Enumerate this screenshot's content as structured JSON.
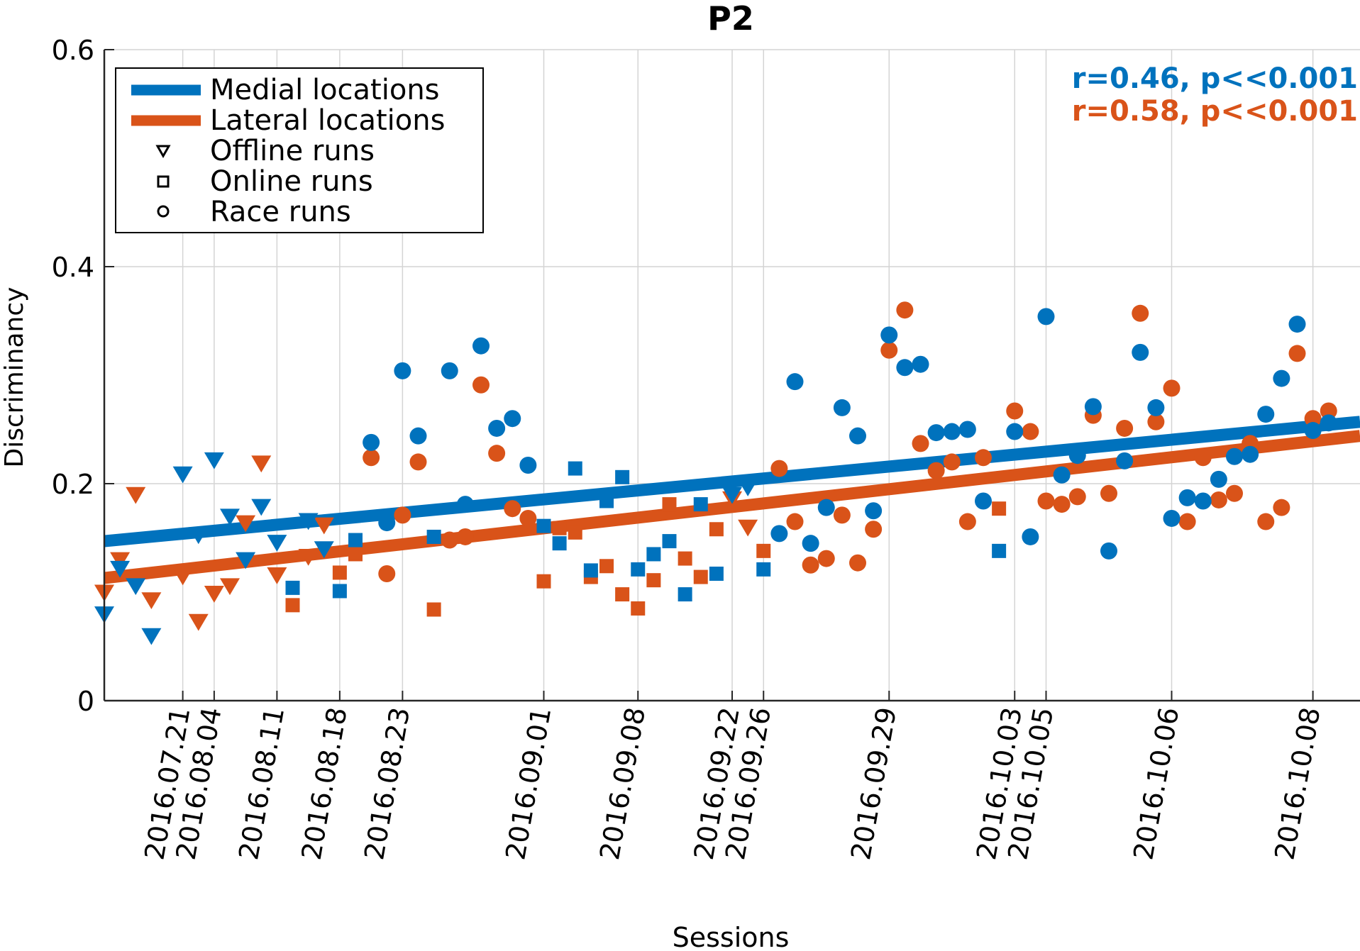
{
  "chart_data": {
    "type": "scatter",
    "title": "P2",
    "xlabel": "Sessions",
    "ylabel": "Discriminancy",
    "ylim": [
      0,
      0.6
    ],
    "yticks": [
      "0",
      "0.2",
      "0.4",
      "0.6"
    ],
    "xlim": [
      0,
      80
    ],
    "session_ticks": [
      {
        "label": "2016.07.21",
        "x": 5
      },
      {
        "label": "2016.08.04",
        "x": 7
      },
      {
        "label": "2016.08.11",
        "x": 11
      },
      {
        "label": "2016.08.18",
        "x": 15
      },
      {
        "label": "2016.08.23",
        "x": 19
      },
      {
        "label": "2016.09.01",
        "x": 28
      },
      {
        "label": "2016.09.08",
        "x": 34
      },
      {
        "label": "2016.09.22",
        "x": 40
      },
      {
        "label": "2016.09.26",
        "x": 42
      },
      {
        "label": "2016.09.29",
        "x": 50
      },
      {
        "label": "2016.10.03",
        "x": 58
      },
      {
        "label": "2016.10.05",
        "x": 60
      },
      {
        "label": "2016.10.06",
        "x": 68
      },
      {
        "label": "2016.10.08",
        "x": 77
      }
    ],
    "grid": true,
    "legend_position": "top-left",
    "legend": {
      "lines": [
        "Medial locations",
        "Lateral locations"
      ],
      "markers": [
        {
          "label": "Offline runs",
          "marker": "triangle-down"
        },
        {
          "label": "Online runs",
          "marker": "square"
        },
        {
          "label": "Race runs",
          "marker": "circle"
        }
      ]
    },
    "annotations": [
      {
        "text": "r=0.46, p<<0.001",
        "series": "Medial locations"
      },
      {
        "text": "r=0.58, p<<0.001",
        "series": "Lateral locations"
      }
    ],
    "series": [
      {
        "name": "Medial locations",
        "color": "#0072BD",
        "trend": [
          [
            0,
            0.147
          ],
          [
            80,
            0.257
          ]
        ],
        "points": [
          {
            "x": 0,
            "y": 0.08,
            "m": "tri"
          },
          {
            "x": 1,
            "y": 0.122,
            "m": "tri"
          },
          {
            "x": 2,
            "y": 0.106,
            "m": "tri"
          },
          {
            "x": 3,
            "y": 0.06,
            "m": "tri"
          },
          {
            "x": 5,
            "y": 0.209,
            "m": "tri"
          },
          {
            "x": 6,
            "y": 0.153,
            "m": "tri"
          },
          {
            "x": 7,
            "y": 0.222,
            "m": "tri"
          },
          {
            "x": 8,
            "y": 0.17,
            "m": "tri"
          },
          {
            "x": 9,
            "y": 0.13,
            "m": "tri"
          },
          {
            "x": 10,
            "y": 0.179,
            "m": "tri"
          },
          {
            "x": 11,
            "y": 0.146,
            "m": "tri"
          },
          {
            "x": 12,
            "y": 0.104,
            "m": "sq"
          },
          {
            "x": 13,
            "y": 0.166,
            "m": "tri"
          },
          {
            "x": 14,
            "y": 0.14,
            "m": "tri"
          },
          {
            "x": 15,
            "y": 0.101,
            "m": "sq"
          },
          {
            "x": 16,
            "y": 0.148,
            "m": "sq"
          },
          {
            "x": 17,
            "y": 0.238,
            "m": "circ"
          },
          {
            "x": 18,
            "y": 0.164,
            "m": "circ"
          },
          {
            "x": 19,
            "y": 0.304,
            "m": "circ"
          },
          {
            "x": 20,
            "y": 0.244,
            "m": "circ"
          },
          {
            "x": 21,
            "y": 0.151,
            "m": "sq"
          },
          {
            "x": 22,
            "y": 0.304,
            "m": "circ"
          },
          {
            "x": 23,
            "y": 0.181,
            "m": "circ"
          },
          {
            "x": 24,
            "y": 0.327,
            "m": "circ"
          },
          {
            "x": 25,
            "y": 0.251,
            "m": "circ"
          },
          {
            "x": 26,
            "y": 0.26,
            "m": "circ"
          },
          {
            "x": 27,
            "y": 0.217,
            "m": "circ"
          },
          {
            "x": 28,
            "y": 0.161,
            "m": "sq"
          },
          {
            "x": 29,
            "y": 0.145,
            "m": "sq"
          },
          {
            "x": 30,
            "y": 0.214,
            "m": "sq"
          },
          {
            "x": 31,
            "y": 0.12,
            "m": "sq"
          },
          {
            "x": 32,
            "y": 0.184,
            "m": "sq"
          },
          {
            "x": 33,
            "y": 0.206,
            "m": "sq"
          },
          {
            "x": 34,
            "y": 0.121,
            "m": "sq"
          },
          {
            "x": 35,
            "y": 0.135,
            "m": "sq"
          },
          {
            "x": 36,
            "y": 0.147,
            "m": "sq"
          },
          {
            "x": 37,
            "y": 0.098,
            "m": "sq"
          },
          {
            "x": 38,
            "y": 0.181,
            "m": "sq"
          },
          {
            "x": 39,
            "y": 0.117,
            "m": "sq"
          },
          {
            "x": 40,
            "y": 0.19,
            "m": "tri"
          },
          {
            "x": 41,
            "y": 0.197,
            "m": "tri"
          },
          {
            "x": 42,
            "y": 0.121,
            "m": "sq"
          },
          {
            "x": 43,
            "y": 0.154,
            "m": "circ"
          },
          {
            "x": 44,
            "y": 0.294,
            "m": "circ"
          },
          {
            "x": 45,
            "y": 0.145,
            "m": "circ"
          },
          {
            "x": 46,
            "y": 0.178,
            "m": "circ"
          },
          {
            "x": 47,
            "y": 0.27,
            "m": "circ"
          },
          {
            "x": 48,
            "y": 0.244,
            "m": "circ"
          },
          {
            "x": 49,
            "y": 0.175,
            "m": "circ"
          },
          {
            "x": 50,
            "y": 0.337,
            "m": "circ"
          },
          {
            "x": 51,
            "y": 0.307,
            "m": "circ"
          },
          {
            "x": 52,
            "y": 0.31,
            "m": "circ"
          },
          {
            "x": 53,
            "y": 0.247,
            "m": "circ"
          },
          {
            "x": 54,
            "y": 0.248,
            "m": "circ"
          },
          {
            "x": 55,
            "y": 0.25,
            "m": "circ"
          },
          {
            "x": 56,
            "y": 0.184,
            "m": "circ"
          },
          {
            "x": 57,
            "y": 0.138,
            "m": "sq"
          },
          {
            "x": 58,
            "y": 0.248,
            "m": "circ"
          },
          {
            "x": 59,
            "y": 0.151,
            "m": "circ"
          },
          {
            "x": 60,
            "y": 0.354,
            "m": "circ"
          },
          {
            "x": 61,
            "y": 0.208,
            "m": "circ"
          },
          {
            "x": 62,
            "y": 0.226,
            "m": "circ"
          },
          {
            "x": 63,
            "y": 0.271,
            "m": "circ"
          },
          {
            "x": 64,
            "y": 0.138,
            "m": "circ"
          },
          {
            "x": 65,
            "y": 0.221,
            "m": "circ"
          },
          {
            "x": 66,
            "y": 0.321,
            "m": "circ"
          },
          {
            "x": 67,
            "y": 0.27,
            "m": "circ"
          },
          {
            "x": 68,
            "y": 0.168,
            "m": "circ"
          },
          {
            "x": 69,
            "y": 0.187,
            "m": "circ"
          },
          {
            "x": 70,
            "y": 0.184,
            "m": "circ"
          },
          {
            "x": 71,
            "y": 0.204,
            "m": "circ"
          },
          {
            "x": 72,
            "y": 0.225,
            "m": "circ"
          },
          {
            "x": 73,
            "y": 0.227,
            "m": "circ"
          },
          {
            "x": 74,
            "y": 0.264,
            "m": "circ"
          },
          {
            "x": 75,
            "y": 0.297,
            "m": "circ"
          },
          {
            "x": 76,
            "y": 0.347,
            "m": "circ"
          },
          {
            "x": 77,
            "y": 0.249,
            "m": "circ"
          },
          {
            "x": 78,
            "y": 0.256,
            "m": "circ"
          }
        ]
      },
      {
        "name": "Lateral locations",
        "color": "#D95319",
        "trend": [
          [
            0,
            0.113
          ],
          [
            80,
            0.244
          ]
        ],
        "points": [
          {
            "x": 0,
            "y": 0.1,
            "m": "tri"
          },
          {
            "x": 1,
            "y": 0.13,
            "m": "tri"
          },
          {
            "x": 2,
            "y": 0.19,
            "m": "tri"
          },
          {
            "x": 3,
            "y": 0.093,
            "m": "tri"
          },
          {
            "x": 5,
            "y": 0.115,
            "m": "tri"
          },
          {
            "x": 6,
            "y": 0.073,
            "m": "tri"
          },
          {
            "x": 7,
            "y": 0.099,
            "m": "tri"
          },
          {
            "x": 8,
            "y": 0.106,
            "m": "tri"
          },
          {
            "x": 9,
            "y": 0.164,
            "m": "tri"
          },
          {
            "x": 10,
            "y": 0.219,
            "m": "tri"
          },
          {
            "x": 11,
            "y": 0.116,
            "m": "tri"
          },
          {
            "x": 12,
            "y": 0.088,
            "m": "sq"
          },
          {
            "x": 13,
            "y": 0.133,
            "m": "tri"
          },
          {
            "x": 14,
            "y": 0.162,
            "m": "tri"
          },
          {
            "x": 15,
            "y": 0.118,
            "m": "sq"
          },
          {
            "x": 16,
            "y": 0.135,
            "m": "sq"
          },
          {
            "x": 17,
            "y": 0.224,
            "m": "circ"
          },
          {
            "x": 18,
            "y": 0.117,
            "m": "circ"
          },
          {
            "x": 19,
            "y": 0.171,
            "m": "circ"
          },
          {
            "x": 20,
            "y": 0.22,
            "m": "circ"
          },
          {
            "x": 21,
            "y": 0.084,
            "m": "sq"
          },
          {
            "x": 22,
            "y": 0.148,
            "m": "circ"
          },
          {
            "x": 23,
            "y": 0.151,
            "m": "circ"
          },
          {
            "x": 24,
            "y": 0.291,
            "m": "circ"
          },
          {
            "x": 25,
            "y": 0.228,
            "m": "circ"
          },
          {
            "x": 26,
            "y": 0.177,
            "m": "circ"
          },
          {
            "x": 27,
            "y": 0.168,
            "m": "circ"
          },
          {
            "x": 28,
            "y": 0.11,
            "m": "sq"
          },
          {
            "x": 29,
            "y": 0.159,
            "m": "sq"
          },
          {
            "x": 30,
            "y": 0.155,
            "m": "sq"
          },
          {
            "x": 31,
            "y": 0.114,
            "m": "sq"
          },
          {
            "x": 32,
            "y": 0.124,
            "m": "sq"
          },
          {
            "x": 33,
            "y": 0.098,
            "m": "sq"
          },
          {
            "x": 34,
            "y": 0.085,
            "m": "sq"
          },
          {
            "x": 35,
            "y": 0.111,
            "m": "sq"
          },
          {
            "x": 36,
            "y": 0.181,
            "m": "sq"
          },
          {
            "x": 37,
            "y": 0.131,
            "m": "sq"
          },
          {
            "x": 38,
            "y": 0.114,
            "m": "sq"
          },
          {
            "x": 39,
            "y": 0.158,
            "m": "sq"
          },
          {
            "x": 40,
            "y": 0.186,
            "m": "tri"
          },
          {
            "x": 41,
            "y": 0.16,
            "m": "tri"
          },
          {
            "x": 42,
            "y": 0.138,
            "m": "sq"
          },
          {
            "x": 43,
            "y": 0.214,
            "m": "circ"
          },
          {
            "x": 44,
            "y": 0.165,
            "m": "circ"
          },
          {
            "x": 45,
            "y": 0.125,
            "m": "circ"
          },
          {
            "x": 46,
            "y": 0.131,
            "m": "circ"
          },
          {
            "x": 47,
            "y": 0.171,
            "m": "circ"
          },
          {
            "x": 48,
            "y": 0.127,
            "m": "circ"
          },
          {
            "x": 49,
            "y": 0.158,
            "m": "circ"
          },
          {
            "x": 50,
            "y": 0.323,
            "m": "circ"
          },
          {
            "x": 51,
            "y": 0.36,
            "m": "circ"
          },
          {
            "x": 52,
            "y": 0.237,
            "m": "circ"
          },
          {
            "x": 53,
            "y": 0.212,
            "m": "circ"
          },
          {
            "x": 54,
            "y": 0.22,
            "m": "circ"
          },
          {
            "x": 55,
            "y": 0.165,
            "m": "circ"
          },
          {
            "x": 56,
            "y": 0.224,
            "m": "circ"
          },
          {
            "x": 57,
            "y": 0.177,
            "m": "sq"
          },
          {
            "x": 58,
            "y": 0.267,
            "m": "circ"
          },
          {
            "x": 59,
            "y": 0.248,
            "m": "circ"
          },
          {
            "x": 60,
            "y": 0.184,
            "m": "circ"
          },
          {
            "x": 61,
            "y": 0.181,
            "m": "circ"
          },
          {
            "x": 62,
            "y": 0.188,
            "m": "circ"
          },
          {
            "x": 63,
            "y": 0.263,
            "m": "circ"
          },
          {
            "x": 64,
            "y": 0.191,
            "m": "circ"
          },
          {
            "x": 65,
            "y": 0.251,
            "m": "circ"
          },
          {
            "x": 66,
            "y": 0.357,
            "m": "circ"
          },
          {
            "x": 67,
            "y": 0.257,
            "m": "circ"
          },
          {
            "x": 68,
            "y": 0.288,
            "m": "circ"
          },
          {
            "x": 69,
            "y": 0.165,
            "m": "circ"
          },
          {
            "x": 70,
            "y": 0.224,
            "m": "circ"
          },
          {
            "x": 71,
            "y": 0.185,
            "m": "circ"
          },
          {
            "x": 72,
            "y": 0.191,
            "m": "circ"
          },
          {
            "x": 73,
            "y": 0.237,
            "m": "circ"
          },
          {
            "x": 74,
            "y": 0.165,
            "m": "circ"
          },
          {
            "x": 75,
            "y": 0.178,
            "m": "circ"
          },
          {
            "x": 76,
            "y": 0.32,
            "m": "circ"
          },
          {
            "x": 77,
            "y": 0.26,
            "m": "circ"
          },
          {
            "x": 78,
            "y": 0.267,
            "m": "circ"
          }
        ]
      }
    ]
  }
}
